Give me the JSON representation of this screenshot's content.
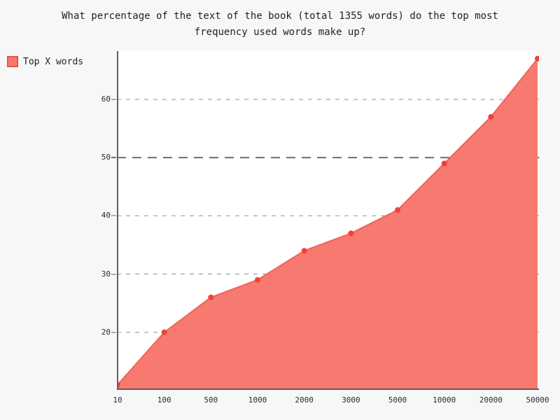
{
  "title": "What percentage of the text of the book (total 1355 words) do the top most frequency used words make up?",
  "legend": {
    "label": "Top X words",
    "swatch_fill": "#f7796f",
    "swatch_border": "#e4554b",
    "position": "top-left"
  },
  "chart_data": {
    "type": "area",
    "title": "What percentage of the text of the book (total 1355 words) do the top most frequency used words make up?",
    "categories": [
      "10",
      "100",
      "500",
      "1000",
      "2000",
      "3000",
      "5000",
      "10000",
      "20000",
      "50000"
    ],
    "series": [
      {
        "name": "Top X words",
        "values": [
          11,
          20,
          26,
          29,
          34,
          37,
          41,
          49,
          57,
          67
        ]
      }
    ],
    "xlabel": "",
    "ylabel": "",
    "ylim": [
      10.1,
      68.3
    ],
    "yticks": [
      20,
      30,
      40,
      50,
      60
    ],
    "grid": "horizontal-dashed",
    "grid_emphasized_tick": 50,
    "legend_position": "top-left",
    "colors": {
      "fill": "#f7796f",
      "line": "#f2635a",
      "point": "#ee4236",
      "grid": "#adadad",
      "grid_major": "#6e6e6e",
      "axis": "#606060",
      "tick_text": "#2b2b2b",
      "page_background": "#f7f7f8",
      "plot_background": "#ffffff"
    }
  }
}
